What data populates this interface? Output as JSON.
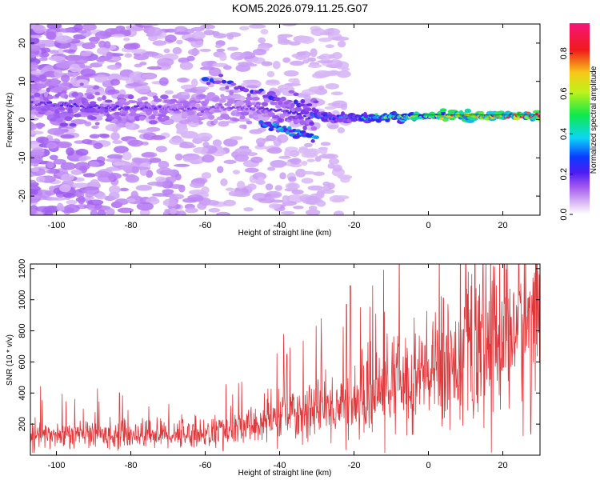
{
  "chart_data": [
    {
      "type": "heatmap",
      "title": "KOM5.2026.079.11.25.G07",
      "xlabel": "Height of straight line (km)",
      "ylabel": "Frequency (Hz)",
      "xlim": [
        -107,
        30
      ],
      "ylim": [
        -25,
        25
      ],
      "xticks": [
        -100,
        -80,
        -60,
        -40,
        -20,
        0,
        20
      ],
      "xtick_labels": [
        "-100",
        "-80",
        "-60",
        "-40",
        "-20",
        "0",
        "20"
      ],
      "yticks": [
        -20,
        -10,
        0,
        10,
        20
      ],
      "ytick_labels": [
        "-20",
        "-10",
        "0",
        "10",
        "20"
      ],
      "colorbar": {
        "label": "Normalized spectral amplitude",
        "range": [
          0,
          0.95
        ],
        "ticks": [
          0,
          0.2,
          0.4,
          0.6,
          0.8
        ],
        "tick_labels": [
          "0.0",
          "0.2",
          "0.4",
          "0.6",
          "0.8"
        ],
        "colormap": "rainbow (lavender-purple-blue-cyan-green-yellow-red-magenta)"
      },
      "ridge": [
        {
          "x": -105,
          "f": 4.5,
          "amp": 0.18
        },
        {
          "x": -95,
          "f": 3.5,
          "amp": 0.22
        },
        {
          "x": -85,
          "f": 3.0,
          "amp": 0.2
        },
        {
          "x": -75,
          "f": 3.0,
          "amp": 0.18
        },
        {
          "x": -65,
          "f": 2.5,
          "amp": 0.15
        },
        {
          "x": -55,
          "f": 3.0,
          "amp": 0.13
        },
        {
          "x": -45,
          "f": 3.0,
          "amp": 0.18
        },
        {
          "x": -35,
          "f": 1.5,
          "amp": 0.25
        },
        {
          "x": -25,
          "f": 0.5,
          "amp": 0.3
        },
        {
          "x": -15,
          "f": 0.5,
          "amp": 0.45
        },
        {
          "x": -5,
          "f": 0.8,
          "amp": 0.6
        },
        {
          "x": 5,
          "f": 1.0,
          "amp": 0.75
        },
        {
          "x": 15,
          "f": 1.0,
          "amp": 0.8
        },
        {
          "x": 25,
          "f": 1.0,
          "amp": 0.9
        }
      ],
      "branches": [
        {
          "from": [
            -60,
            11
          ],
          "to": [
            -32,
            3
          ],
          "amp": 0.2
        },
        {
          "from": [
            -45,
            -1
          ],
          "to": [
            -30,
            -5
          ],
          "amp": 0.28
        }
      ],
      "colors": {
        "background": "#ffffff"
      }
    },
    {
      "type": "line",
      "xlabel": "Height of straight line (km)",
      "ylabel": "SNR (10 * v/v)",
      "xlim": [
        -107,
        30
      ],
      "ylim": [
        0,
        1230
      ],
      "xticks": [
        -100,
        -80,
        -60,
        -40,
        -20,
        0,
        20
      ],
      "xtick_labels": [
        "-100",
        "-80",
        "-60",
        "-40",
        "-20",
        "0",
        "20"
      ],
      "yticks": [
        200,
        400,
        600,
        800,
        1000,
        1200
      ],
      "ytick_labels": [
        "200",
        "400",
        "600",
        "800",
        "1000",
        "1200"
      ],
      "color": "#e0383a",
      "trend": {
        "x": [
          -107,
          -80,
          -60,
          -50,
          -40,
          -30,
          -20,
          -10,
          0,
          10,
          20,
          30
        ],
        "y": [
          130,
          135,
          140,
          170,
          250,
          300,
          330,
          450,
          520,
          650,
          800,
          870
        ]
      },
      "spikes": [
        {
          "x": -21,
          "y": 1090
        },
        {
          "x": -22,
          "y": 970
        },
        {
          "x": 10,
          "y": 1230
        },
        {
          "x": 12,
          "y": 1180
        },
        {
          "x": 4,
          "y": 1010
        },
        {
          "x": -38,
          "y": 650
        }
      ],
      "dips": [
        {
          "x": 12,
          "y": 320
        }
      ]
    }
  ]
}
